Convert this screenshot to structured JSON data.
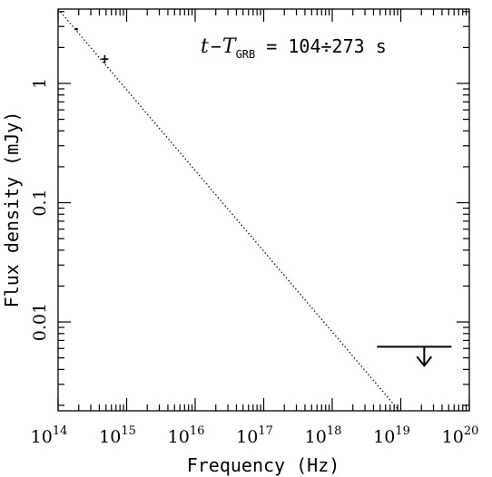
{
  "chart_data": {
    "type": "scatter",
    "title": "",
    "xlabel": "Frequency (Hz)",
    "ylabel": "Flux density (mJy)",
    "x_scale": "log",
    "y_scale": "log",
    "xlim": [
      100000000000000.0,
      1e+20
    ],
    "ylim": [
      0.0018,
      4.2
    ],
    "grid": false,
    "legend": "none",
    "x_tick_labels": [
      {
        "value": 100000000000000.0,
        "base": "10",
        "exp": "14"
      },
      {
        "value": 1000000000000000.0,
        "base": "10",
        "exp": "15"
      },
      {
        "value": 1e+16,
        "base": "10",
        "exp": "16"
      },
      {
        "value": 1e+17,
        "base": "10",
        "exp": "17"
      },
      {
        "value": 1e+18,
        "base": "10",
        "exp": "18"
      },
      {
        "value": 1e+19,
        "base": "10",
        "exp": "19"
      },
      {
        "value": 1e+20,
        "base": "10",
        "exp": "20"
      }
    ],
    "y_tick_labels": [
      {
        "value": 1,
        "text": "1"
      },
      {
        "value": 0.1,
        "text": "0.1"
      },
      {
        "value": 0.01,
        "text": "0.01"
      }
    ],
    "annotation": {
      "t": "t",
      "minus": "−",
      "T": "T",
      "sub": "GRB",
      "rest": " = 104÷273 s"
    },
    "series": [
      {
        "type": "points",
        "points": [
          {
            "x": 185000000000000.0,
            "y": 2.85,
            "yerr": 0.07
          },
          {
            "x": 480000000000000.0,
            "y": 1.6,
            "yerr": 0.13,
            "xerr": [
              430000000000000.0,
              540000000000000.0
            ]
          }
        ]
      },
      {
        "type": "line",
        "style": "dotted",
        "x": [
          100000000000000.0,
          9.5e+18
        ],
        "y": [
          4.2,
          0.0018
        ]
      },
      {
        "type": "upper_limit",
        "x_range": [
          4.5e+18,
          5.5e+19
        ],
        "y": 0.0062,
        "arrow_x": 2.2e+19,
        "arrow_to": 0.0043
      }
    ]
  }
}
